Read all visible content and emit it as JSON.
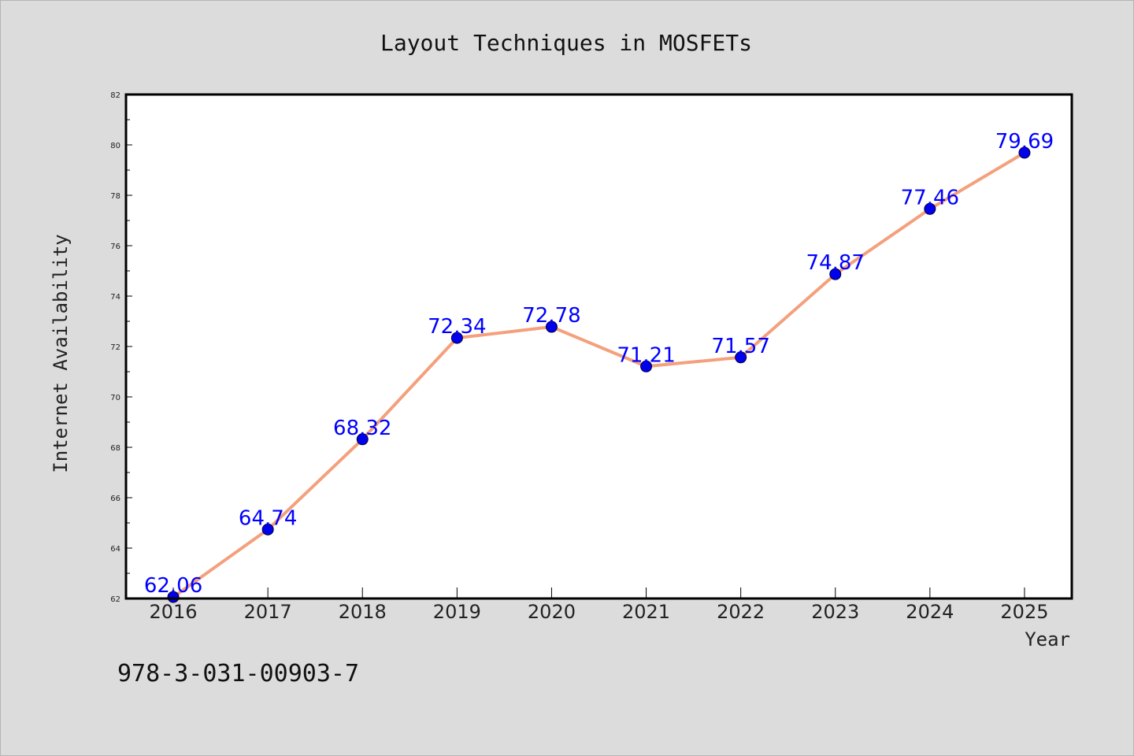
{
  "chart_data": {
    "type": "line",
    "title": "Layout Techniques in MOSFETs",
    "xlabel": "Year",
    "ylabel": "Internet Availability",
    "categories": [
      "2016",
      "2017",
      "2018",
      "2019",
      "2020",
      "2021",
      "2022",
      "2023",
      "2024",
      "2025"
    ],
    "series": [
      {
        "values": [
          62.06,
          64.74,
          68.32,
          72.34,
          72.78,
          71.21,
          71.57,
          74.87,
          77.46,
          79.69
        ],
        "data_labels": [
          "62.06",
          "64.74",
          "68.32",
          "72.34",
          "72.78",
          "71.21",
          "71.57",
          "74.87",
          "77.46",
          "79.69"
        ],
        "line_color": "#f4a07c",
        "marker_color": "#0000ee",
        "label_color": "#0000ff"
      }
    ],
    "ylim": [
      62,
      82
    ],
    "yticks": [
      "62",
      "64",
      "66",
      "68",
      "70",
      "72",
      "74",
      "76",
      "78",
      "80",
      "82"
    ],
    "grid": false,
    "legend": "none"
  },
  "footnote": "978-3-031-00903-7",
  "colors": {
    "figure_background": "#dcdcdc",
    "plot_background": "#ffffff",
    "axes": "#000000"
  }
}
